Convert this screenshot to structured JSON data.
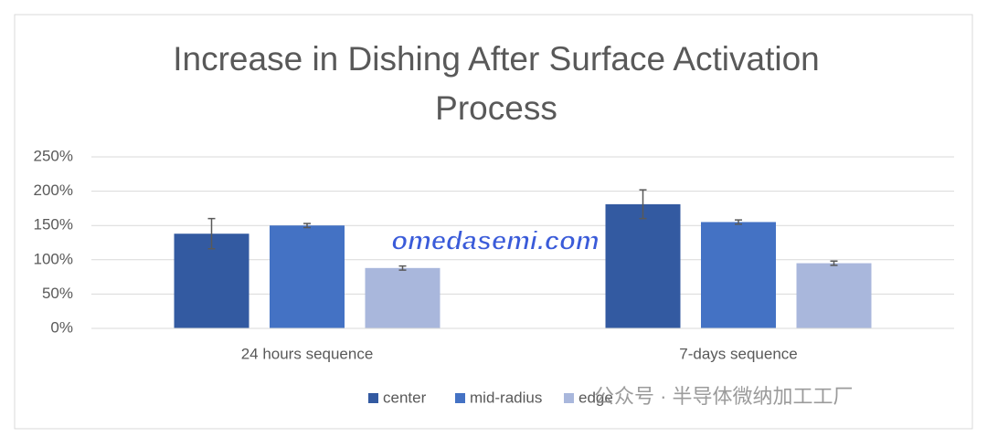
{
  "chart_data": {
    "type": "bar",
    "title": "Increase in Dishing After Surface Activation Process",
    "categories": [
      "24 hours sequence",
      "7-days sequence"
    ],
    "series": [
      {
        "name": "center",
        "color": "#335aa1",
        "values": [
          138,
          181
        ],
        "errors": [
          22,
          21
        ]
      },
      {
        "name": "mid-radius",
        "color": "#4472c4",
        "values": [
          150,
          155
        ],
        "errors": [
          3,
          3
        ]
      },
      {
        "name": "edge",
        "color": "#a9b7dc",
        "values": [
          88,
          95
        ],
        "errors": [
          3,
          3
        ]
      }
    ],
    "ylim": [
      0,
      250
    ],
    "yticks": [
      {
        "value": 0,
        "label": "0%"
      },
      {
        "value": 50,
        "label": "50%"
      },
      {
        "value": 100,
        "label": "100%"
      },
      {
        "value": 150,
        "label": "150%"
      },
      {
        "value": 200,
        "label": "200%"
      },
      {
        "value": 250,
        "label": "250%"
      }
    ],
    "grid": true,
    "legend": "bottom",
    "watermarks": [
      "omedasemi.com",
      "公众号 · 半导体微纳加工工厂"
    ]
  }
}
